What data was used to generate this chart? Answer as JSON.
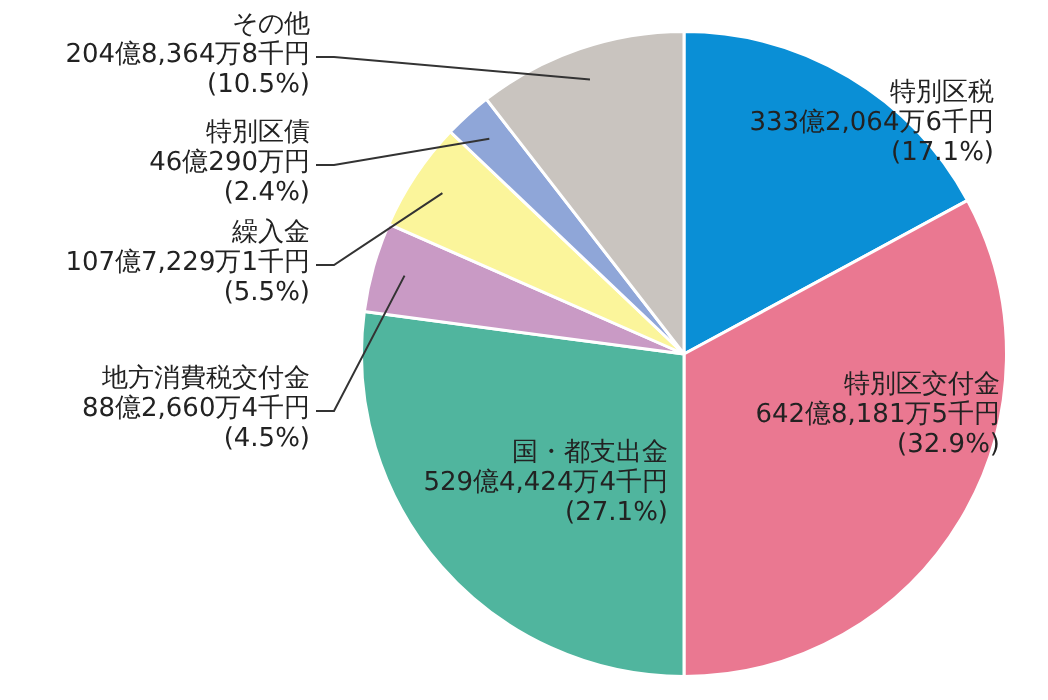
{
  "chart_data": {
    "type": "pie",
    "categories": [
      "特別区税",
      "特別区交付金",
      "国・都支出金",
      "地方消費税交付金",
      "繰入金",
      "特別区債",
      "その他"
    ],
    "values": [
      17.1,
      32.9,
      27.1,
      4.5,
      5.5,
      2.4,
      10.5
    ],
    "colors": [
      "#0a8fd6",
      "#ea7891",
      "#50b59e",
      "#c99ac5",
      "#fbf59b",
      "#8fa6d8",
      "#c9c4bf"
    ],
    "value_labels": [
      "333億2,064万6千円\n(17.1%)",
      "642億8,181万5千円\n(32.9%)",
      "529億4,424万4千円\n(27.1%)",
      "88億2,660万4千円\n(4.5%)",
      "107億7,229万1千円\n(5.5%)",
      "46億290万円\n(2.4%)",
      "204億8,364万8千円\n(10.5%)"
    ],
    "legend": false
  }
}
